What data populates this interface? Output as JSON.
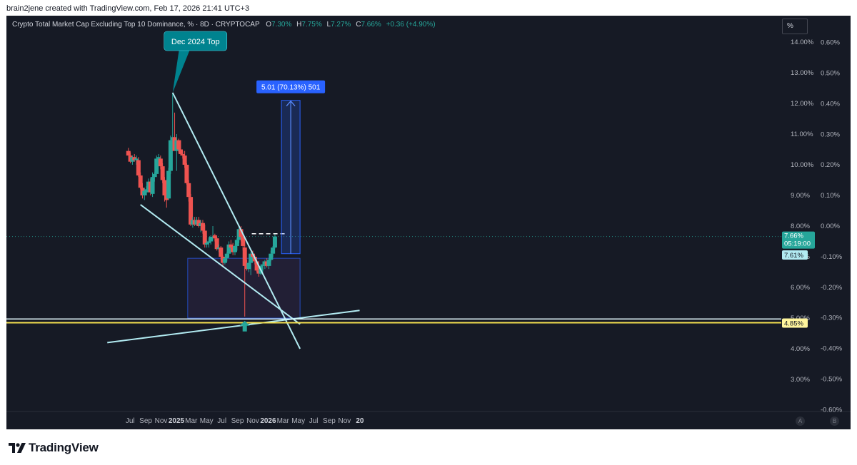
{
  "header": {
    "attribution": "brain2jene created with TradingView.com, Feb 17, 2026 21:41 UTC+3"
  },
  "legend": {
    "symbol": "Crypto Total Market Cap Excluding Top 10 Dominance, % · 8D · CRYPTOCAP",
    "open_label": "O",
    "open": "7.30%",
    "high_label": "H",
    "high": "7.75%",
    "low_label": "L",
    "low": "7.27%",
    "close_label": "C",
    "close": "7.66%",
    "change": "+0.36 (+4.90%)"
  },
  "toolbar": {
    "scale_button": "%",
    "auto_button": "A",
    "log_button": "B"
  },
  "footer": {
    "brand": "TradingView"
  },
  "colors": {
    "background": "#161a25",
    "up": "#26a69a",
    "down": "#ef5350",
    "trendline": "#b2ebf2",
    "support": "#f5e050",
    "measure": "#2962ff"
  },
  "chart_data": {
    "type": "candlestick",
    "x_ticks": [
      {
        "label": "Jul",
        "date": "2024-07-01"
      },
      {
        "label": "Sep",
        "date": "2024-09-01"
      },
      {
        "label": "Nov",
        "date": "2024-11-01"
      },
      {
        "label": "2025",
        "date": "2025-01-01",
        "bold": true
      },
      {
        "label": "Mar",
        "date": "2025-03-01"
      },
      {
        "label": "May",
        "date": "2025-05-01"
      },
      {
        "label": "Jul",
        "date": "2025-07-01"
      },
      {
        "label": "Sep",
        "date": "2025-09-01"
      },
      {
        "label": "Nov",
        "date": "2025-11-01"
      },
      {
        "label": "2026",
        "date": "2026-01-01",
        "bold": true
      },
      {
        "label": "Mar",
        "date": "2026-03-01"
      },
      {
        "label": "May",
        "date": "2026-05-01"
      },
      {
        "label": "Jul",
        "date": "2026-07-01"
      },
      {
        "label": "Sep",
        "date": "2026-09-01"
      },
      {
        "label": "Nov",
        "date": "2026-11-01"
      },
      {
        "label": "20",
        "date": "2027-01-01",
        "bold": true
      }
    ],
    "y_ticks": [
      "3.00%",
      "4.00%",
      "5.00%",
      "6.00%",
      "7.00%",
      "8.00%",
      "9.00%",
      "10.00%",
      "11.00%",
      "12.00%",
      "13.00%",
      "14.00%"
    ],
    "y_ticks_change": [
      "-0.60%",
      "-0.50%",
      "-0.40%",
      "-0.30%",
      "-0.20%",
      "-0.10%",
      "0.00%",
      "0.10%",
      "0.20%",
      "0.30%",
      "0.40%",
      "0.50%",
      "0.60%"
    ],
    "candles": [
      [
        "2024-06-24",
        10.45,
        10.55,
        10.3,
        10.3
      ],
      [
        "2024-07-02",
        10.3,
        10.4,
        10.05,
        10.1
      ],
      [
        "2024-07-10",
        10.1,
        10.3,
        10.0,
        10.25
      ],
      [
        "2024-07-18",
        10.25,
        10.35,
        10.1,
        10.15
      ],
      [
        "2024-07-26",
        10.15,
        10.3,
        10.0,
        10.2
      ],
      [
        "2024-08-03",
        10.15,
        10.25,
        9.6,
        9.65
      ],
      [
        "2024-08-11",
        9.65,
        9.75,
        9.2,
        9.25
      ],
      [
        "2024-08-19",
        9.25,
        9.4,
        8.9,
        9.0
      ],
      [
        "2024-08-27",
        9.0,
        9.25,
        8.85,
        9.15
      ],
      [
        "2024-09-04",
        9.1,
        9.3,
        9.0,
        9.2
      ],
      [
        "2024-09-12",
        9.2,
        9.55,
        9.1,
        9.45
      ],
      [
        "2024-09-20",
        9.45,
        9.55,
        9.0,
        9.1
      ],
      [
        "2024-09-28",
        9.05,
        9.75,
        8.95,
        9.6
      ],
      [
        "2024-10-06",
        9.6,
        9.75,
        9.45,
        9.7
      ],
      [
        "2024-10-14",
        9.7,
        10.3,
        9.6,
        10.2
      ],
      [
        "2024-10-22",
        10.2,
        10.35,
        10.0,
        10.25
      ],
      [
        "2024-10-30",
        10.2,
        10.3,
        9.85,
        9.95
      ],
      [
        "2024-11-07",
        9.95,
        10.05,
        9.4,
        9.5
      ],
      [
        "2024-11-15",
        9.5,
        9.6,
        8.8,
        9.0
      ],
      [
        "2024-11-23",
        9.0,
        9.2,
        8.6,
        8.85
      ],
      [
        "2024-12-01",
        8.9,
        9.9,
        8.85,
        9.8
      ],
      [
        "2024-12-09",
        9.8,
        10.95,
        9.7,
        10.8
      ],
      [
        "2024-12-17",
        10.8,
        12.35,
        10.7,
        10.9
      ],
      [
        "2024-12-25",
        10.9,
        11.7,
        10.5,
        10.45
      ],
      [
        "2025-01-02",
        10.45,
        11.0,
        9.8,
        10.8
      ],
      [
        "2025-01-10",
        10.8,
        10.85,
        10.4,
        10.5
      ],
      [
        "2025-01-18",
        10.5,
        10.8,
        10.3,
        10.35
      ],
      [
        "2025-01-26",
        10.35,
        10.45,
        10.2,
        10.3
      ],
      [
        "2025-02-03",
        10.3,
        10.45,
        9.9,
        10.0
      ],
      [
        "2025-02-11",
        10.0,
        10.05,
        9.35,
        9.4
      ],
      [
        "2025-02-19",
        9.4,
        9.5,
        8.8,
        8.95
      ],
      [
        "2025-02-27",
        8.95,
        9.05,
        8.0,
        8.05
      ],
      [
        "2025-03-07",
        8.05,
        8.3,
        7.95,
        8.2
      ],
      [
        "2025-03-15",
        8.2,
        8.3,
        8.0,
        8.05
      ],
      [
        "2025-03-23",
        8.05,
        8.3,
        8.0,
        8.2
      ],
      [
        "2025-03-31",
        8.2,
        8.3,
        7.95,
        8.0
      ],
      [
        "2025-04-08",
        8.0,
        8.2,
        7.8,
        8.1
      ],
      [
        "2025-04-16",
        8.1,
        8.2,
        7.75,
        7.85
      ],
      [
        "2025-04-24",
        7.85,
        8.05,
        7.3,
        7.4
      ],
      [
        "2025-05-02",
        7.4,
        7.55,
        7.3,
        7.45
      ],
      [
        "2025-05-10",
        7.45,
        7.6,
        7.3,
        7.5
      ],
      [
        "2025-05-18",
        7.5,
        7.7,
        7.4,
        7.65
      ],
      [
        "2025-05-26",
        7.65,
        8.0,
        7.55,
        7.65
      ],
      [
        "2025-06-03",
        7.7,
        7.75,
        7.5,
        7.6
      ],
      [
        "2025-06-11",
        7.6,
        7.65,
        7.2,
        7.25
      ],
      [
        "2025-06-19",
        7.25,
        7.4,
        7.15,
        7.3
      ],
      [
        "2025-06-27",
        7.3,
        7.35,
        6.9,
        7.0
      ],
      [
        "2025-07-05",
        7.0,
        7.05,
        6.7,
        6.8
      ],
      [
        "2025-07-13",
        6.8,
        7.0,
        6.75,
        6.95
      ],
      [
        "2025-07-21",
        6.95,
        7.15,
        6.85,
        7.1
      ],
      [
        "2025-07-29",
        7.1,
        7.5,
        7.0,
        7.4
      ],
      [
        "2025-08-06",
        7.4,
        7.55,
        7.25,
        7.3
      ],
      [
        "2025-08-14",
        7.3,
        7.45,
        7.05,
        7.15
      ],
      [
        "2025-08-22",
        7.15,
        7.4,
        7.05,
        7.35
      ],
      [
        "2025-08-30",
        7.35,
        7.6,
        7.2,
        7.55
      ],
      [
        "2025-09-07",
        7.55,
        7.95,
        7.45,
        7.9
      ],
      [
        "2025-09-15",
        7.9,
        8.0,
        7.5,
        7.65
      ],
      [
        "2025-09-23",
        7.65,
        7.7,
        7.2,
        7.35
      ],
      [
        "2025-09-30",
        7.3,
        7.4,
        5.05,
        6.7
      ],
      [
        "2025-10-08",
        6.75,
        6.9,
        6.55,
        6.6
      ],
      [
        "2025-10-16",
        6.6,
        6.85,
        6.5,
        6.8
      ],
      [
        "2025-10-24",
        6.8,
        7.15,
        6.4,
        7.1
      ],
      [
        "2025-11-01",
        7.1,
        7.2,
        6.95,
        7.0
      ],
      [
        "2025-11-09",
        7.0,
        7.05,
        6.75,
        6.85
      ],
      [
        "2025-11-17",
        6.85,
        6.9,
        6.5,
        6.55
      ],
      [
        "2025-11-25",
        6.55,
        6.7,
        6.35,
        6.45
      ],
      [
        "2025-12-03",
        6.45,
        6.75,
        6.4,
        6.7
      ],
      [
        "2025-12-11",
        6.7,
        6.85,
        6.55,
        6.75
      ],
      [
        "2025-12-19",
        6.75,
        6.9,
        6.6,
        6.85
      ],
      [
        "2025-12-27",
        6.85,
        6.95,
        6.65,
        6.7
      ],
      [
        "2026-01-04",
        6.7,
        6.95,
        6.6,
        6.9
      ],
      [
        "2026-01-12",
        6.9,
        7.2,
        6.85,
        7.1
      ],
      [
        "2026-01-20",
        7.1,
        7.35,
        7.0,
        7.3
      ],
      [
        "2026-01-28",
        7.3,
        7.75,
        7.27,
        7.66
      ]
    ],
    "price_labels": [
      {
        "text": "7.66%",
        "sub": "05:19:00",
        "value": 7.66,
        "color": "#26a69a"
      },
      {
        "text": "7.61%",
        "value": 7.61,
        "color": "#b2ebf2"
      },
      {
        "text": "4.85%",
        "value": 4.85,
        "color": "#fff59d"
      }
    ],
    "trend_lines": [
      {
        "from": [
          "2024-12-17",
          12.35
        ],
        "to": [
          "2026-05-08",
          4.0
        ]
      },
      {
        "from": [
          "2024-08-11",
          8.7
        ],
        "to": [
          "2026-05-08",
          4.8
        ]
      },
      {
        "from": [
          "2024-04-01",
          4.2
        ],
        "to": [
          "2026-12-31",
          5.25
        ]
      }
    ],
    "support_lines": [
      4.97,
      4.85
    ],
    "zone": {
      "from": "2025-02-15",
      "to": "2026-05-08",
      "top": 6.95,
      "bottom": 5.0
    },
    "resistance_dash": {
      "from": "2025-10-28",
      "to": "2026-03-12",
      "value": 7.75
    },
    "measure": {
      "x": "2026-04-01",
      "bottom": 7.1,
      "top": 12.1,
      "label": "5.01 (70.13%) 501"
    },
    "annotation": {
      "text": "Dec 2024 Top",
      "date": "2024-12-17",
      "value": 12.35
    },
    "signal_arrow": {
      "date": "2025-09-30",
      "value": 4.75
    }
  }
}
